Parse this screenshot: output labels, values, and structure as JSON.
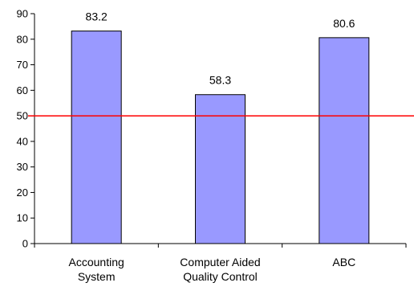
{
  "chart_data": {
    "type": "bar",
    "categories": [
      [
        "Accounting",
        "System"
      ],
      [
        "Computer Aided",
        "Quality Control"
      ],
      [
        "ABC"
      ]
    ],
    "values": [
      83.2,
      58.3,
      80.6
    ],
    "data_labels": [
      "83.2",
      "58.3",
      "80.6"
    ],
    "ylim": [
      0,
      90
    ],
    "yticks": [
      0,
      10,
      20,
      30,
      40,
      50,
      60,
      70,
      80,
      90
    ],
    "reference_line": {
      "y": 50,
      "color": "#ff0000"
    },
    "bar_color": "#9999ff",
    "bar_edge_color": "#000000",
    "grid": false,
    "title": "",
    "xlabel": "",
    "ylabel": ""
  }
}
